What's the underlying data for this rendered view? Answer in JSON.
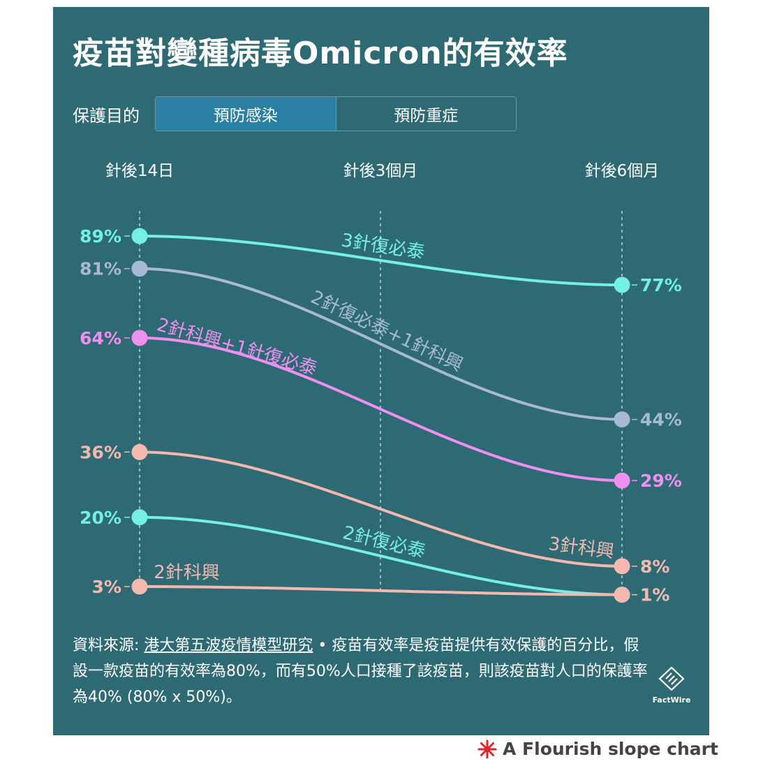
{
  "title": "疫苗對變種病毒Omicron的有效率",
  "filter": {
    "label": "保護目的",
    "options": [
      "預防感染",
      "預防重症"
    ],
    "selected": "預防感染"
  },
  "chart_data": {
    "type": "slope",
    "columns": [
      "針後14日",
      "針後3個月",
      "針後6個月"
    ],
    "series": [
      {
        "name": "3針復必泰",
        "start": 89,
        "end": 77,
        "color": "#74f0e0",
        "label_pos": 0.5
      },
      {
        "name": "2針復必泰+1針科興",
        "start": 81,
        "end": 44,
        "color": "#a7b9d4",
        "label_pos": 0.5
      },
      {
        "name": "2針科興+1針復必泰",
        "start": 64,
        "end": 29,
        "color": "#ef8ff0",
        "label_pos": 0.2
      },
      {
        "name": "3針科興",
        "start": 36,
        "end": 8,
        "color": "#f4b8b0",
        "label_pos": 0.9
      },
      {
        "name": "2針復必泰",
        "start": 20,
        "end": 1,
        "color": "#74f0e0",
        "label_pos": 0.5
      },
      {
        "name": "2針科興",
        "start": 3,
        "end": 1,
        "color": "#f4b8b0",
        "label_pos": 0.1
      }
    ],
    "start_labels": [
      "89%",
      "81%",
      "64%",
      "36%",
      "20%",
      "3%"
    ],
    "end_labels": [
      "77%",
      "44%",
      "29%",
      "8%",
      "1%",
      "1%"
    ]
  },
  "footnote": {
    "source_label": "資料來源: ",
    "source_link": "港大第五波疫情模型研究",
    "text": " • 疫苗有效率是疫苗提供有效保護的百分比，假設一款疫苗的有效率為80%，而有50%人口接種了該疫苗，則該疫苗對人口的保護率為40% (80% x 50%)。"
  },
  "brand": "FactWire",
  "credit": "A Flourish slope chart"
}
